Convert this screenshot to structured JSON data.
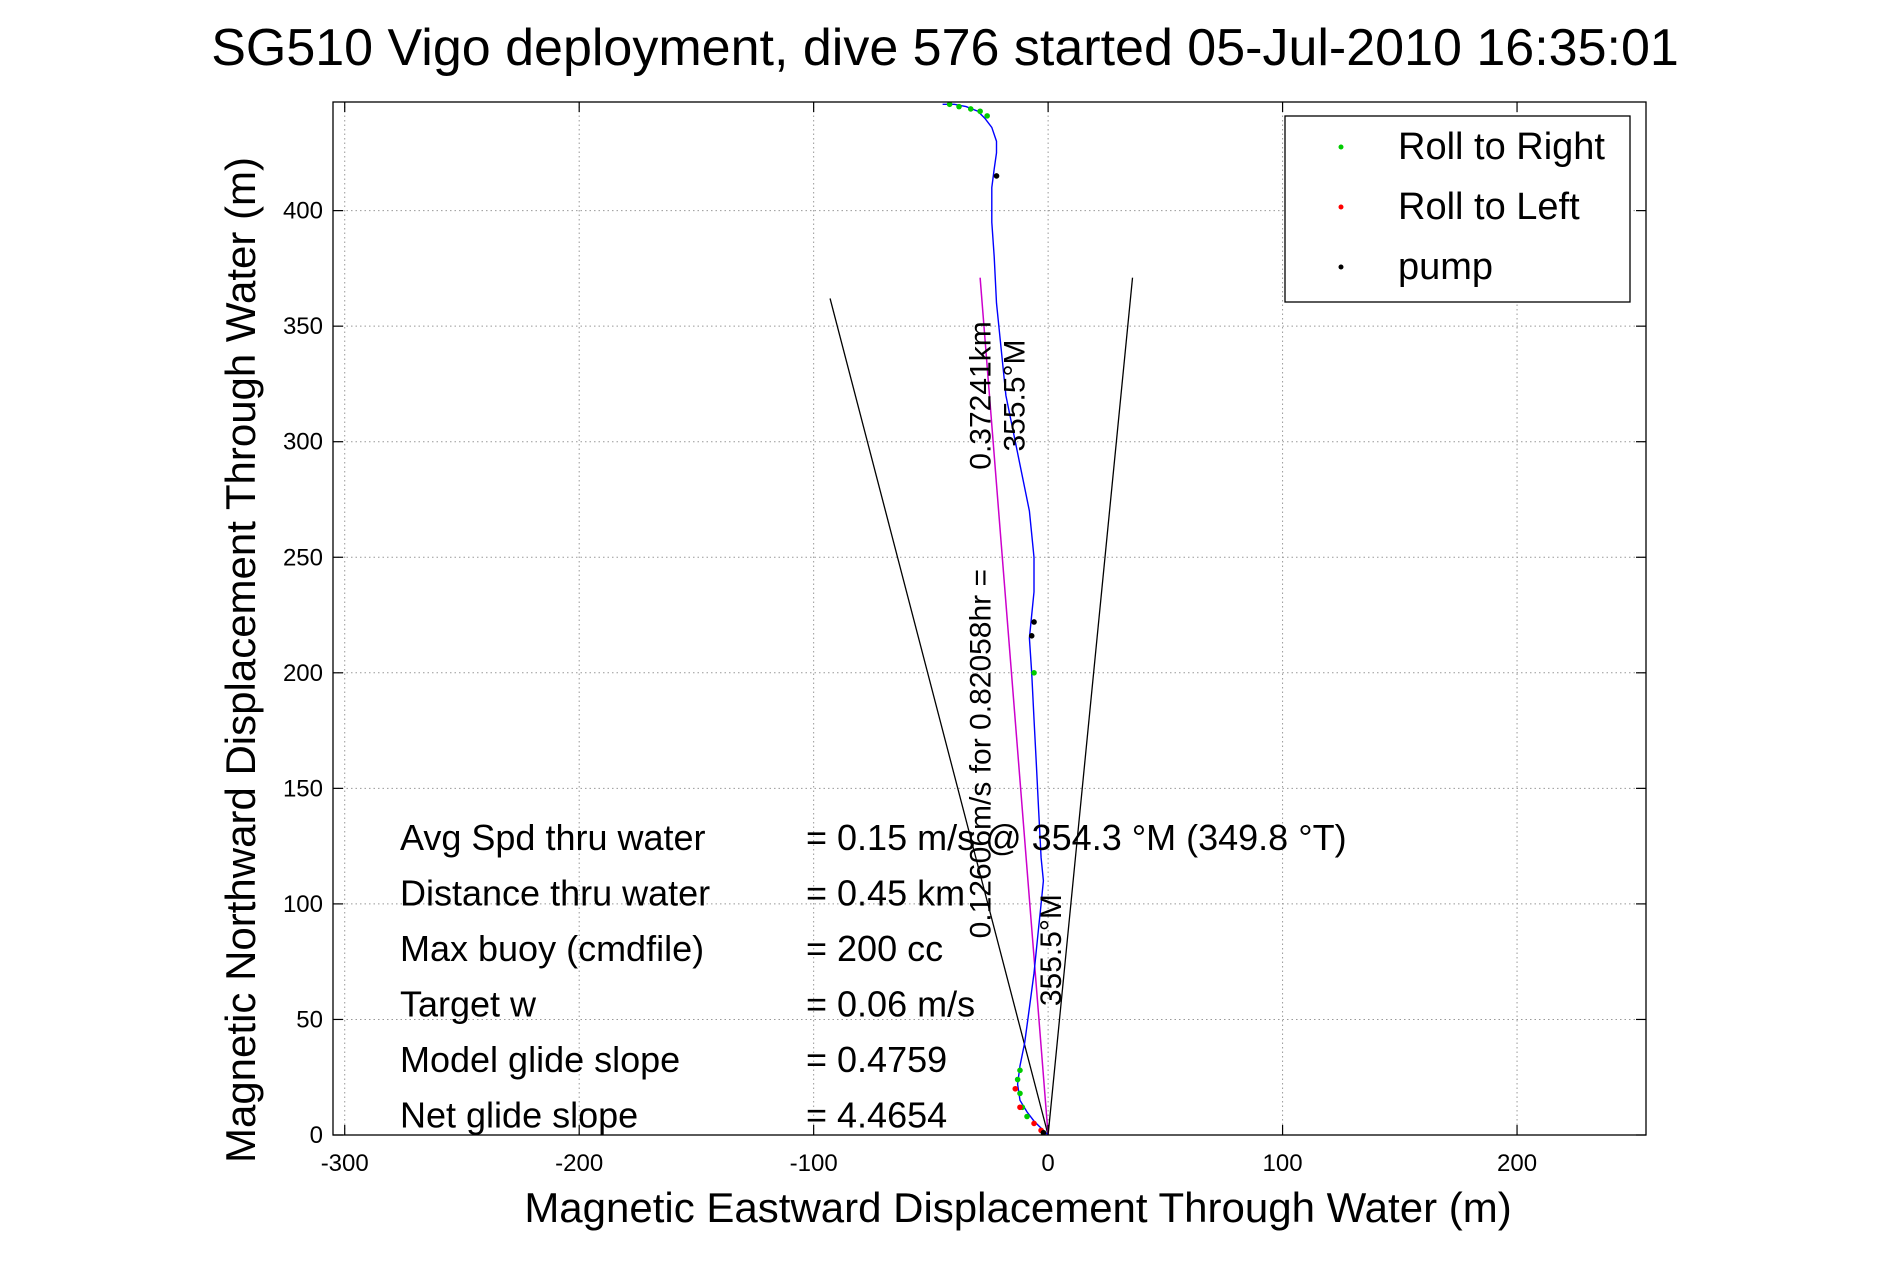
{
  "chart_data": {
    "type": "line",
    "title": "SG510 Vigo deployment, dive 576 started 05-Jul-2010 16:35:01",
    "xlabel": "Magnetic Eastward Displacement Through Water (m)",
    "ylabel": "Magnetic Northward Displacement Through Water (m)",
    "xlim": [
      -305,
      255
    ],
    "ylim": [
      0,
      447
    ],
    "xticks": [
      -300,
      -200,
      -100,
      0,
      100,
      200
    ],
    "xtick_labels": [
      "-300",
      "-200",
      "-100",
      "0",
      "100",
      "200"
    ],
    "yticks": [
      0,
      50,
      100,
      150,
      200,
      250,
      300,
      350,
      400
    ],
    "ytick_labels": [
      "0",
      "50",
      "100",
      "150",
      "200",
      "250",
      "300",
      "350",
      "400"
    ],
    "grid": true,
    "legend_position": "top-right",
    "legend": [
      {
        "label": "Roll to Right",
        "color": "#00cc00"
      },
      {
        "label": "Roll to Left",
        "color": "#ff0000"
      },
      {
        "label": "pump",
        "color": "#000000"
      }
    ],
    "series": [
      {
        "name": "track",
        "color": "#0000ff",
        "x": [
          0,
          -3,
          -6,
          -9,
          -12,
          -13,
          -12,
          -10,
          -8,
          -6,
          -4,
          -3,
          -2,
          -3,
          -4,
          -5,
          -6,
          -7,
          -8,
          -7,
          -6,
          -6,
          -7,
          -8,
          -10,
          -12,
          -14,
          -16,
          -18,
          -20,
          -22,
          -23,
          -24,
          -24,
          -23,
          -22,
          -22,
          -24,
          -27,
          -30,
          -35,
          -40,
          -45
        ],
        "y": [
          0,
          3,
          6,
          10,
          15,
          22,
          30,
          40,
          55,
          70,
          90,
          100,
          110,
          120,
          140,
          160,
          180,
          200,
          215,
          225,
          235,
          250,
          260,
          270,
          280,
          290,
          300,
          310,
          320,
          340,
          360,
          380,
          395,
          410,
          418,
          425,
          430,
          436,
          440,
          443,
          445,
          446,
          446
        ]
      },
      {
        "name": "Roll to Right",
        "color": "#00cc00",
        "x": [
          -9,
          -11,
          -12,
          -13,
          -12,
          -6,
          -42,
          -38,
          -33,
          -29,
          -26
        ],
        "y": [
          8,
          12,
          18,
          24,
          28,
          200,
          446,
          445,
          444,
          443,
          441
        ]
      },
      {
        "name": "Roll to Left",
        "color": "#ff0000",
        "x": [
          -3,
          -6,
          -12,
          -14
        ],
        "y": [
          2,
          5,
          12,
          20
        ]
      },
      {
        "name": "pump",
        "color": "#000000",
        "x": [
          -2,
          -7,
          -6,
          -22
        ],
        "y": [
          1,
          216,
          222,
          415
        ]
      }
    ],
    "mean_track": {
      "color": "#cc00cc",
      "x": [
        0,
        -29
      ],
      "y": [
        0,
        371
      ]
    },
    "wedge_lines": [
      {
        "x": [
          0,
          -93
        ],
        "y": [
          0,
          362
        ]
      },
      {
        "x": [
          0,
          36
        ],
        "y": [
          0,
          371
        ]
      }
    ],
    "annotations": [
      {
        "text": "0.37241km",
        "x": -24.5,
        "y": 320,
        "rotation": -90
      },
      {
        "text": "355.5°M",
        "x": -10,
        "y": 320,
        "rotation": -90
      },
      {
        "text": "0.12606m/s for 0.82058hr =",
        "x": -24.5,
        "y": 165,
        "rotation": -90
      },
      {
        "text": "355.5°M",
        "x": 5.5,
        "y": 80,
        "rotation": -90
      }
    ],
    "stats": [
      {
        "label": "Avg Spd thru water",
        "value": "=  0.15 m/s @  354.3 °M (349.8 °T)"
      },
      {
        "label": "Distance thru water",
        "value": "=  0.45 km"
      },
      {
        "label": "Max buoy (cmdfile)",
        "value": "= 200 cc"
      },
      {
        "label": "Target w",
        "value": "= 0.06 m/s"
      },
      {
        "label": "Model glide slope",
        "value": "= 0.4759"
      },
      {
        "label": "Net glide slope",
        "value": "= 4.4654"
      }
    ]
  }
}
